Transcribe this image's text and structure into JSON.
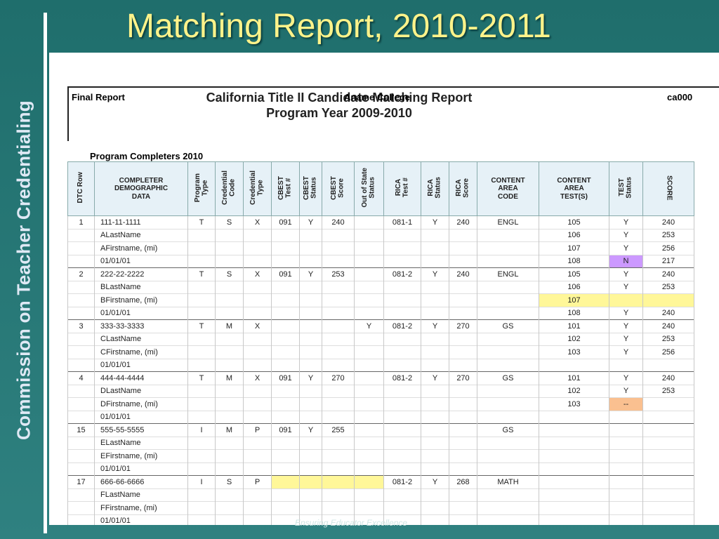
{
  "slide": {
    "title": "Matching Report, 2010-2011",
    "side_title": "Commission on Teacher Credentialing",
    "footer": "Ensuring Educator Excellence"
  },
  "report": {
    "title_line1": "California Title II Candidate Matching Report",
    "title_line2": "Program Year 2009-2010",
    "final": "Final Report",
    "college": "Aname College",
    "code": "ca000",
    "section": "Program Completers 2010",
    "headers": [
      "DTC Row",
      "COMPLETER\nDEMOGRAPHIC\nDATA",
      "Program\nType",
      "Credential\nCode",
      "Credential\nType",
      "CBEST\nTest #",
      "CBEST\nStatus",
      "CBEST\nScore",
      "Out of State\nStatus",
      "RICA\nTest #",
      "RICA\nStatus",
      "RICA\nScore",
      "CONTENT\nAREA\nCODE",
      "CONTENT\nAREA\nTEST(S)",
      "TEST\nStatus",
      "SCORE"
    ],
    "rows": [
      {
        "c": [
          "1",
          "111-11-1111",
          "T",
          "S",
          "X",
          "091",
          "Y",
          "240",
          "",
          "081-1",
          "Y",
          "240",
          "ENGL",
          "105",
          "Y",
          "240"
        ],
        "first": true
      },
      {
        "c": [
          "",
          "ALastName",
          "",
          "",
          "",
          "",
          "",
          "",
          "",
          "",
          "",
          "",
          "",
          "106",
          "Y",
          "253"
        ]
      },
      {
        "c": [
          "",
          "AFirstname, (mi)",
          "",
          "",
          "",
          "",
          "",
          "",
          "",
          "",
          "",
          "",
          "",
          "107",
          "Y",
          "256"
        ]
      },
      {
        "c": [
          "",
          "01/01/01",
          "",
          "",
          "",
          "",
          "",
          "",
          "",
          "",
          "",
          "",
          "",
          "108",
          "N",
          "217"
        ],
        "hl": {
          "14": "pur"
        }
      },
      {
        "c": [
          "2",
          "222-22-2222",
          "T",
          "S",
          "X",
          "091",
          "Y",
          "253",
          "",
          "081-2",
          "Y",
          "240",
          "ENGL",
          "105",
          "Y",
          "240"
        ],
        "first": true
      },
      {
        "c": [
          "",
          "BLastName",
          "",
          "",
          "",
          "",
          "",
          "",
          "",
          "",
          "",
          "",
          "",
          "106",
          "Y",
          "253"
        ]
      },
      {
        "c": [
          "",
          "BFirstname, (mi)",
          "",
          "",
          "",
          "",
          "",
          "",
          "",
          "",
          "",
          "",
          "",
          "107",
          "",
          ""
        ],
        "hl": {
          "13": "yel",
          "14": "yel",
          "15": "yel"
        }
      },
      {
        "c": [
          "",
          "01/01/01",
          "",
          "",
          "",
          "",
          "",
          "",
          "",
          "",
          "",
          "",
          "",
          "108",
          "Y",
          "240"
        ]
      },
      {
        "c": [
          "3",
          "333-33-3333",
          "T",
          "M",
          "X",
          "",
          "",
          "",
          "Y",
          "081-2",
          "Y",
          "270",
          "GS",
          "101",
          "Y",
          "240"
        ],
        "first": true
      },
      {
        "c": [
          "",
          "CLastName",
          "",
          "",
          "",
          "",
          "",
          "",
          "",
          "",
          "",
          "",
          "",
          "102",
          "Y",
          "253"
        ]
      },
      {
        "c": [
          "",
          "CFirstname, (mi)",
          "",
          "",
          "",
          "",
          "",
          "",
          "",
          "",
          "",
          "",
          "",
          "103",
          "Y",
          "256"
        ]
      },
      {
        "c": [
          "",
          "01/01/01",
          "",
          "",
          "",
          "",
          "",
          "",
          "",
          "",
          "",
          "",
          "",
          "",
          "",
          ""
        ]
      },
      {
        "c": [
          "4",
          "444-44-4444",
          "T",
          "M",
          "X",
          "091",
          "Y",
          "270",
          "",
          "081-2",
          "Y",
          "270",
          "GS",
          "101",
          "Y",
          "240"
        ],
        "first": true
      },
      {
        "c": [
          "",
          "DLastName",
          "",
          "",
          "",
          "",
          "",
          "",
          "",
          "",
          "",
          "",
          "",
          "102",
          "Y",
          "253"
        ]
      },
      {
        "c": [
          "",
          "DFirstname, (mi)",
          "",
          "",
          "",
          "",
          "",
          "",
          "",
          "",
          "",
          "",
          "",
          "103",
          "--",
          ""
        ],
        "hl": {
          "14": "org"
        }
      },
      {
        "c": [
          "",
          "01/01/01",
          "",
          "",
          "",
          "",
          "",
          "",
          "",
          "",
          "",
          "",
          "",
          "",
          "",
          ""
        ]
      },
      {
        "c": [
          "15",
          "555-55-5555",
          "I",
          "M",
          "P",
          "091",
          "Y",
          "255",
          "",
          "",
          "",
          "",
          "GS",
          "",
          "",
          ""
        ],
        "first": true
      },
      {
        "c": [
          "",
          "ELastName",
          "",
          "",
          "",
          "",
          "",
          "",
          "",
          "",
          "",
          "",
          "",
          "",
          "",
          ""
        ]
      },
      {
        "c": [
          "",
          "EFirstname, (mi)",
          "",
          "",
          "",
          "",
          "",
          "",
          "",
          "",
          "",
          "",
          "",
          "",
          "",
          ""
        ]
      },
      {
        "c": [
          "",
          "01/01/01",
          "",
          "",
          "",
          "",
          "",
          "",
          "",
          "",
          "",
          "",
          "",
          "",
          "",
          ""
        ]
      },
      {
        "c": [
          "17",
          "666-66-6666",
          "I",
          "S",
          "P",
          "",
          "",
          "",
          "",
          "081-2",
          "Y",
          "268",
          "MATH",
          "",
          "",
          ""
        ],
        "first": true,
        "hl": {
          "5": "yel",
          "6": "yel",
          "7": "yel",
          "8": "yel"
        }
      },
      {
        "c": [
          "",
          "FLastName",
          "",
          "",
          "",
          "",
          "",
          "",
          "",
          "",
          "",
          "",
          "",
          "",
          "",
          ""
        ]
      },
      {
        "c": [
          "",
          "FFirstname, (mi)",
          "",
          "",
          "",
          "",
          "",
          "",
          "",
          "",
          "",
          "",
          "",
          "",
          "",
          ""
        ]
      },
      {
        "c": [
          "",
          "01/01/01",
          "",
          "",
          "",
          "",
          "",
          "",
          "",
          "",
          "",
          "",
          "",
          "",
          "",
          ""
        ]
      }
    ]
  }
}
